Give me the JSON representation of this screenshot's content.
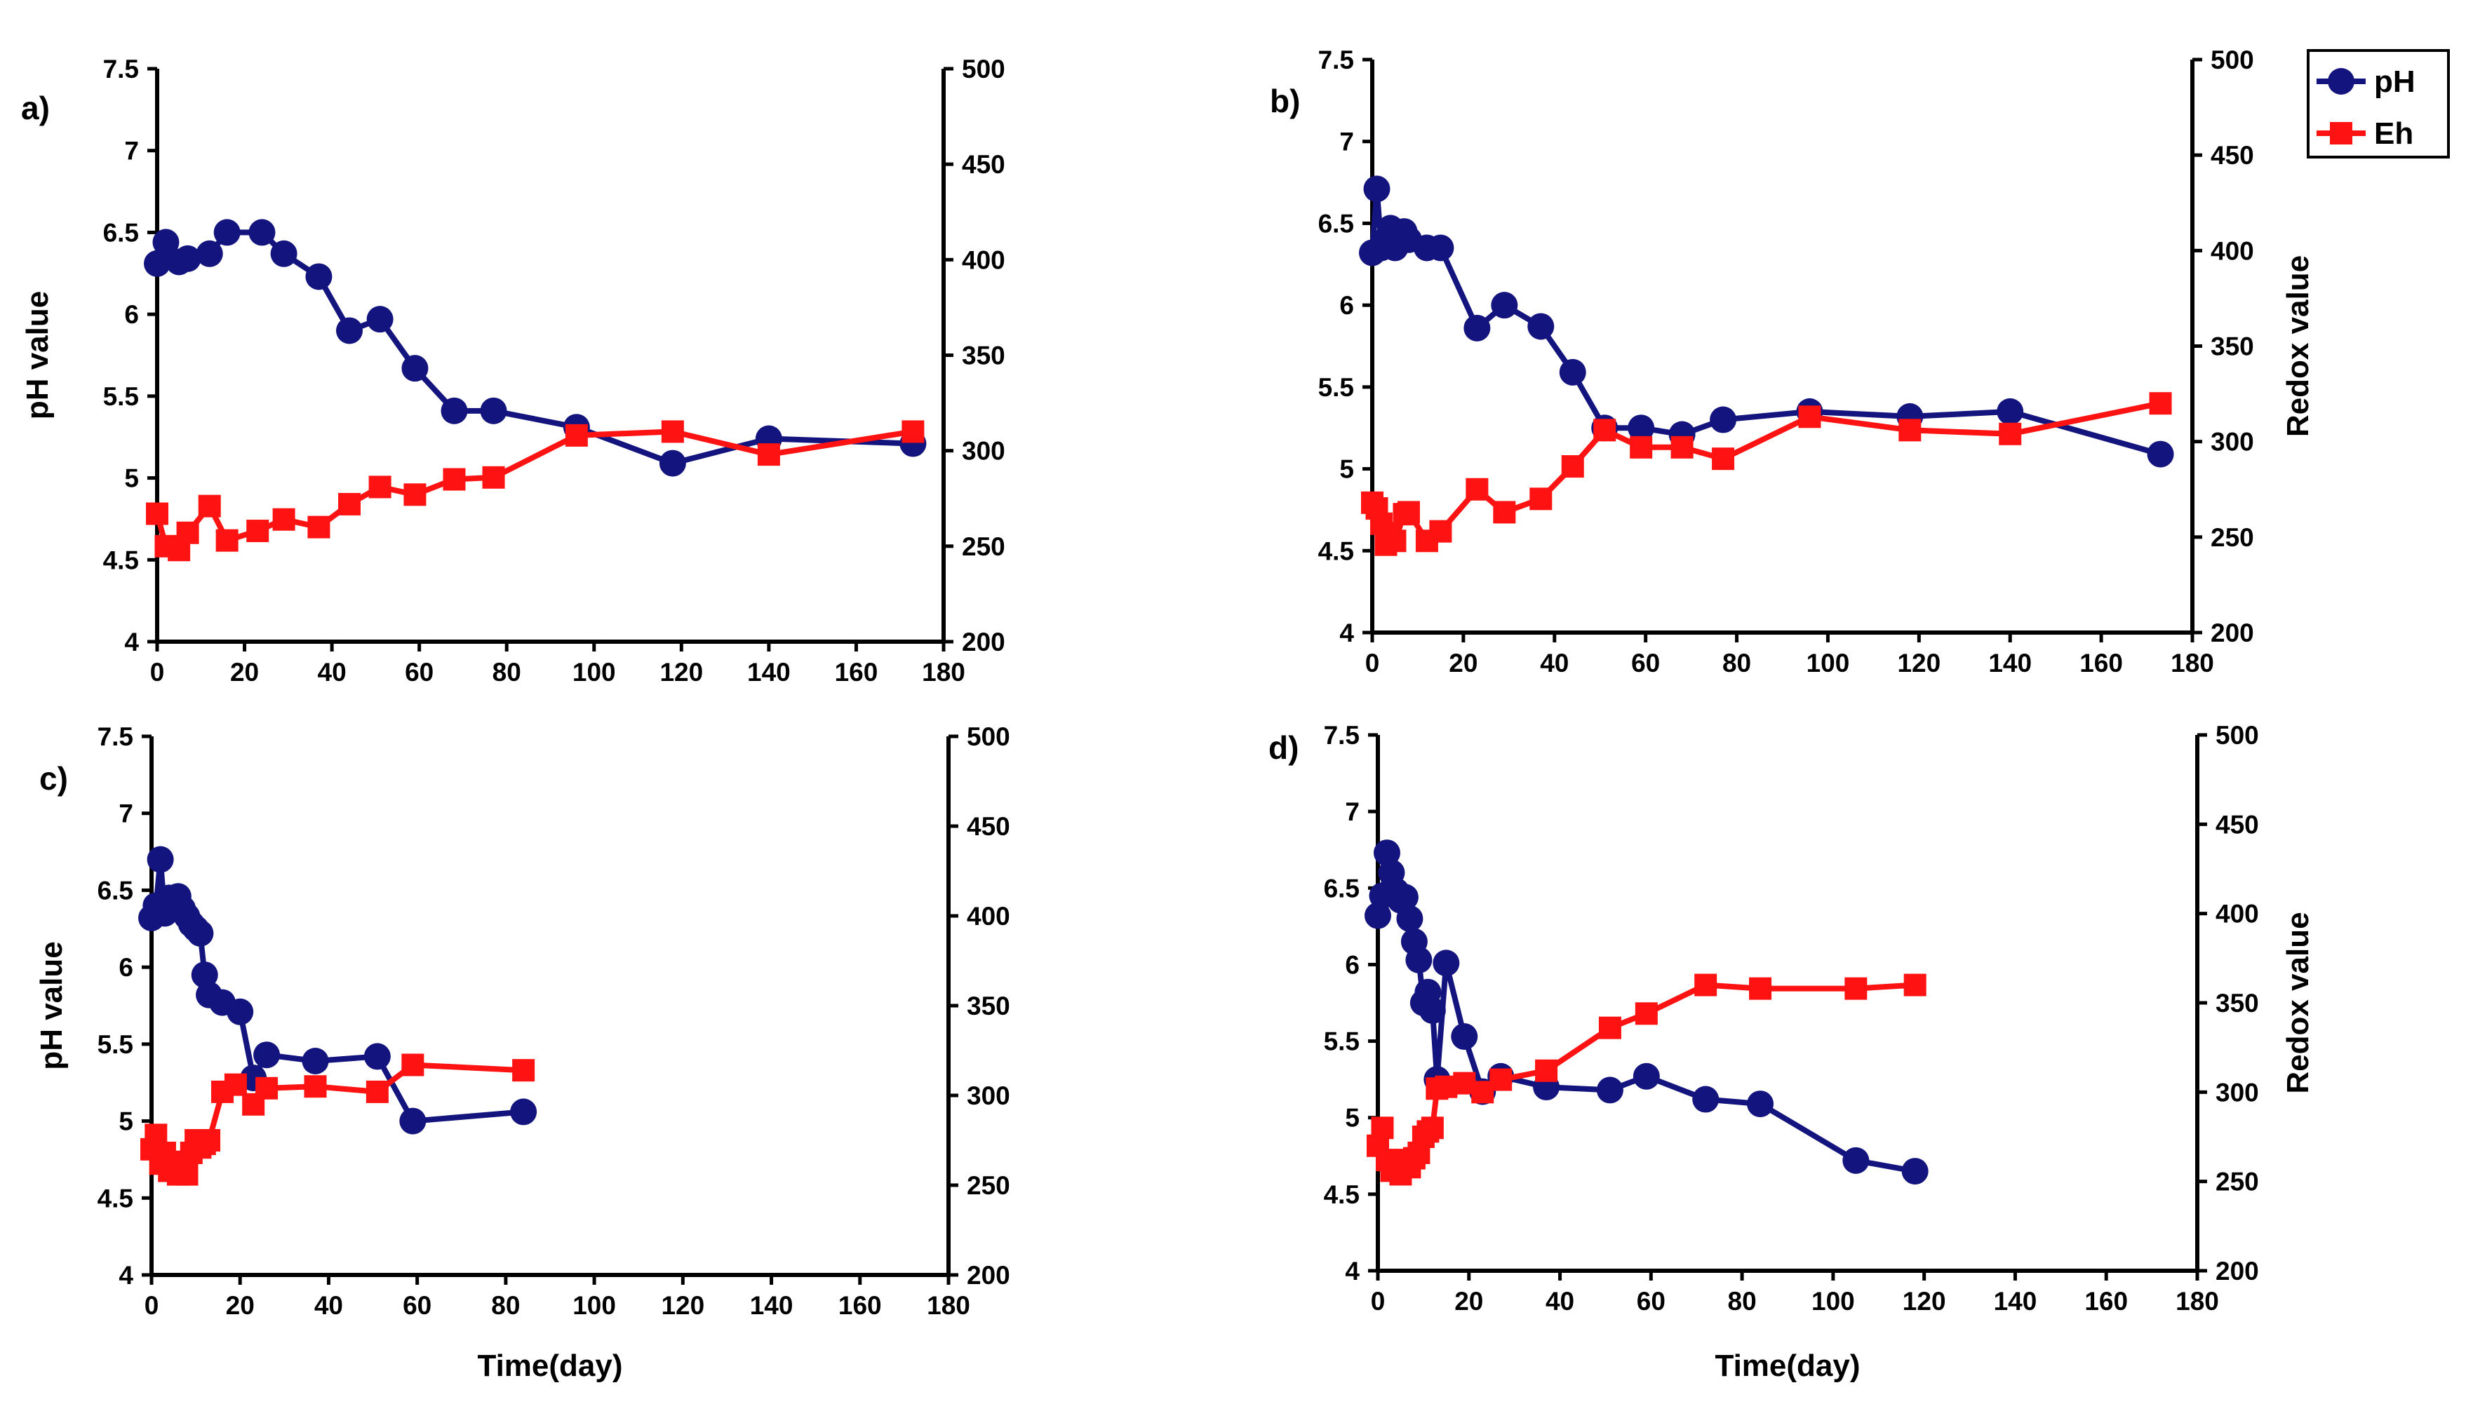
{
  "colors": {
    "ph": "#14147f",
    "eh": "#ff1212",
    "axis": "#000000"
  },
  "legend": [
    {
      "key": "ph",
      "label": "pH",
      "marker": "circle"
    },
    {
      "key": "eh",
      "label": "Eh",
      "marker": "square"
    }
  ],
  "chart_data": [
    {
      "type": "line",
      "panel_label": "a)",
      "xlabel": "",
      "ylabel": "pH value",
      "y2label": "",
      "xlim": [
        0,
        180
      ],
      "xticks": [
        0,
        20,
        40,
        60,
        80,
        100,
        120,
        140,
        160,
        180
      ],
      "ylim": [
        4,
        7.5
      ],
      "yticks": [
        "4",
        "4.5",
        "5",
        "5.5",
        "6",
        "6.5",
        "7",
        "7.5"
      ],
      "y2lim": [
        200,
        500
      ],
      "y2ticks": [
        200,
        250,
        300,
        350,
        400,
        450,
        500
      ],
      "series": [
        {
          "name": "pH",
          "axis": "left",
          "marker": "circle",
          "x": [
            0,
            2,
            5,
            7,
            12,
            16,
            24,
            29,
            37,
            44,
            51,
            59,
            68,
            77,
            96,
            118,
            140,
            173
          ],
          "y": [
            6.31,
            6.44,
            6.32,
            6.34,
            6.37,
            6.5,
            6.5,
            6.37,
            6.23,
            5.9,
            5.97,
            5.67,
            5.41,
            5.41,
            5.31,
            5.09,
            5.24,
            5.21
          ]
        },
        {
          "name": "Eh",
          "axis": "right",
          "marker": "square",
          "x": [
            0,
            2,
            5,
            7,
            12,
            16,
            23,
            29,
            37,
            44,
            51,
            59,
            68,
            77,
            96,
            118,
            140,
            173
          ],
          "y": [
            267,
            250,
            248,
            257,
            271,
            253,
            258,
            264,
            260,
            272,
            281,
            277,
            285,
            286,
            308,
            310,
            298,
            310
          ]
        }
      ]
    },
    {
      "type": "line",
      "panel_label": "b)",
      "xlabel": "",
      "ylabel": "",
      "y2label": "Redox value",
      "xlim": [
        0,
        180
      ],
      "xticks": [
        0,
        20,
        40,
        60,
        80,
        100,
        120,
        140,
        160,
        180
      ],
      "ylim": [
        4,
        7.5
      ],
      "yticks": [
        "4",
        "4.5",
        "5",
        "5.5",
        "6",
        "6.5",
        "7",
        "7.5"
      ],
      "y2lim": [
        200,
        500
      ],
      "y2ticks": [
        200,
        250,
        300,
        350,
        400,
        450,
        500
      ],
      "series": [
        {
          "name": "pH",
          "axis": "left",
          "marker": "circle",
          "x": [
            0,
            1,
            2,
            3,
            4,
            5,
            7,
            8,
            12,
            15,
            23,
            29,
            37,
            44,
            51,
            59,
            68,
            77,
            96,
            118,
            140,
            173
          ],
          "y": [
            6.32,
            6.71,
            6.35,
            6.4,
            6.47,
            6.35,
            6.45,
            6.4,
            6.35,
            6.35,
            5.86,
            6.0,
            5.87,
            5.59,
            5.25,
            5.25,
            5.21,
            5.3,
            5.35,
            5.32,
            5.35,
            5.09
          ]
        },
        {
          "name": "Eh",
          "axis": "right",
          "marker": "square",
          "x": [
            0,
            1,
            2,
            3,
            4,
            5,
            7,
            8,
            12,
            15,
            23,
            29,
            37,
            44,
            51,
            59,
            68,
            77,
            96,
            118,
            140,
            173
          ],
          "y": [
            268,
            265,
            257,
            246,
            252,
            248,
            262,
            263,
            248,
            253,
            275,
            263,
            270,
            287,
            306,
            297,
            297,
            291,
            313,
            306,
            304,
            320
          ]
        }
      ]
    },
    {
      "type": "line",
      "panel_label": "c)",
      "xlabel": "Time(day)",
      "ylabel": "pH value",
      "y2label": "",
      "xlim": [
        0,
        180
      ],
      "xticks": [
        0,
        20,
        40,
        60,
        80,
        100,
        120,
        140,
        160,
        180
      ],
      "ylim": [
        4,
        7.5
      ],
      "yticks": [
        "4",
        "4.5",
        "5",
        "5.5",
        "6",
        "6.5",
        "7",
        "7.5"
      ],
      "y2lim": [
        200,
        500
      ],
      "y2ticks": [
        200,
        250,
        300,
        350,
        400,
        450,
        500
      ],
      "series": [
        {
          "name": "pH",
          "axis": "left",
          "marker": "circle",
          "x": [
            0,
            1,
            2,
            3,
            4,
            5,
            6,
            7,
            8,
            9,
            10,
            11,
            12,
            13,
            16,
            20,
            23,
            26,
            37,
            51,
            59,
            84
          ],
          "y": [
            6.32,
            6.4,
            6.7,
            6.35,
            6.45,
            6.38,
            6.46,
            6.38,
            6.33,
            6.28,
            6.25,
            6.22,
            5.95,
            5.82,
            5.77,
            5.71,
            5.28,
            5.43,
            5.39,
            5.42,
            5.0,
            5.06
          ]
        },
        {
          "name": "Eh",
          "axis": "right",
          "marker": "square",
          "x": [
            0,
            1,
            2,
            3,
            4,
            5,
            6,
            7,
            8,
            9,
            10,
            11,
            12,
            13,
            16,
            19,
            23,
            26,
            37,
            51,
            59,
            84
          ],
          "y": [
            270,
            278,
            262,
            268,
            258,
            263,
            256,
            262,
            256,
            268,
            275,
            271,
            273,
            275,
            302,
            306,
            295,
            304,
            305,
            302,
            317,
            314
          ]
        }
      ]
    },
    {
      "type": "line",
      "panel_label": "d)",
      "xlabel": "Time(day)",
      "ylabel": "",
      "y2label": "Redox value",
      "xlim": [
        0,
        180
      ],
      "xticks": [
        0,
        20,
        40,
        60,
        80,
        100,
        120,
        140,
        160,
        180
      ],
      "ylim": [
        4,
        7.5
      ],
      "yticks": [
        "4",
        "4.5",
        "5",
        "5.5",
        "6",
        "6.5",
        "7",
        "7.5"
      ],
      "y2lim": [
        200,
        500
      ],
      "y2ticks": [
        200,
        250,
        300,
        350,
        400,
        450,
        500
      ],
      "series": [
        {
          "name": "pH",
          "axis": "left",
          "marker": "circle",
          "x": [
            0,
            1,
            2,
            3,
            4,
            5,
            6,
            7,
            8,
            9,
            10,
            11,
            12,
            13,
            15,
            19,
            23,
            27,
            37,
            51,
            59,
            72,
            84,
            105,
            118
          ],
          "y": [
            6.32,
            6.45,
            6.73,
            6.6,
            6.48,
            6.42,
            6.44,
            6.3,
            6.15,
            6.03,
            5.75,
            5.82,
            5.7,
            5.25,
            6.01,
            5.53,
            5.17,
            5.27,
            5.2,
            5.18,
            5.27,
            5.12,
            5.09,
            4.72,
            4.65
          ]
        },
        {
          "name": "Eh",
          "axis": "right",
          "marker": "square",
          "x": [
            0,
            1,
            2,
            3,
            4,
            5,
            6,
            7,
            8,
            9,
            10,
            11,
            12,
            13,
            15,
            19,
            23,
            27,
            37,
            51,
            59,
            72,
            84,
            105,
            118
          ],
          "y": [
            270,
            280,
            262,
            256,
            258,
            254,
            262,
            258,
            263,
            266,
            275,
            278,
            280,
            302,
            303,
            305,
            300,
            307,
            312,
            336,
            344,
            360,
            358,
            358,
            360
          ]
        }
      ]
    }
  ]
}
